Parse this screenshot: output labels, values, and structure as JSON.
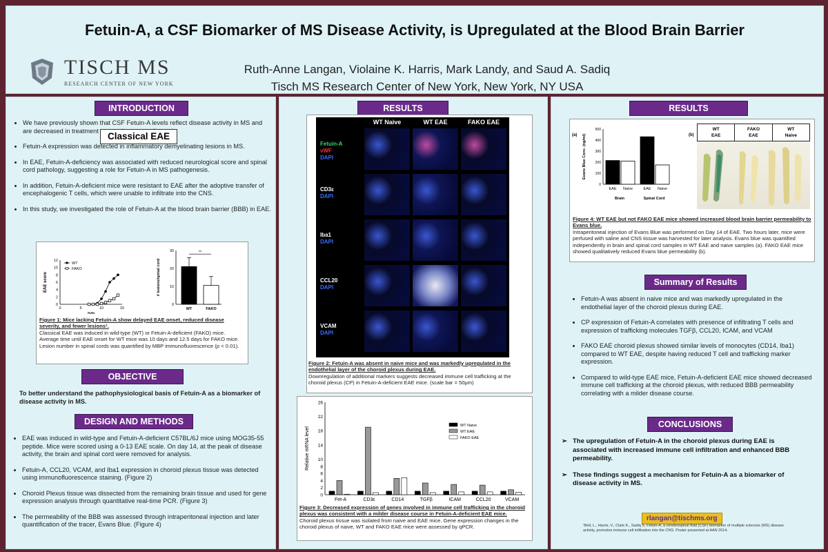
{
  "header": {
    "title": "Fetuin-A, a CSF Biomarker of MS Disease Activity, is Upregulated at the Blood Brain Barrier",
    "logo_main": "TISCH MS",
    "logo_sub": "RESEARCH CENTER OF NEW YORK",
    "authors": "Ruth-Anne Langan, Violaine K. Harris, Mark Landy, and Saud A. Sadiq",
    "affiliation": "Tisch MS Research Center of New York, New York, NY USA"
  },
  "left": {
    "intro_title": "INTRODUCTION",
    "intro_bullets": [
      "We have previously shown that CSF Fetuin-A levels reflect disease activity in MS and are decreased in treatment responders to natalizumab.",
      "Fetuin-A expression was detected in inflammatory demyelinating lesions in MS.",
      "In EAE, Fetuin-A-deficiency was associated with reduced neurological score and spinal cord pathology, suggesting a role for Fetuin-A in MS pathogenesis.",
      "In addition, Fetuin-A-deficient mice were resistant to EAE after the adoptive transfer of encephalogenic T cells, which were unable to infiltrate into the CNS.",
      "In this study, we investigated the role of Fetuin-A at the blood brain barrier (BBB) in EAE."
    ],
    "classical_eae": "Classical EAE",
    "fig1_caption_title": "Figure 1: Mice lacking Fetuin-A show delayed EAE onset, reduced disease severity, and fewer lesions¹.",
    "fig1_caption_text": "Classical EAE was induced in wild-type (WT) or Fetuin-A-deficient (FAKO) mice. Average time until EAE onset for WT mice was 10 days and 12.5 days for FAKO mice. Lesion number in spinal cords was quantified by MBP immunofluorescence (p < 0.01).",
    "objective_title": "OBJECTIVE",
    "objective_text": "To better understand the pathophysiological basis of Fetuin-A as a biomarker of disease activity in MS.",
    "design_title": "DESIGN AND METHODS",
    "design_bullets": [
      "EAE was induced in wild-type and Fetuin-A-deficient C57BL/6J mice using MOG35-55 peptide. Mice were scored using a 0-13 EAE scale. On day 14, at the peak of disease activity, the brain and spinal cord were removed for analysis.",
      "Fetuin-A, CCL20, VCAM, and Iba1 expression in choroid plexus tissue was detected using immunofluorescence staining. (Figure 2)",
      "Choroid Plexus tissue was dissected from the remaining brain tissue and used for gene expression analysis through quantitative real-time PCR. (Figure 3)",
      "The permeability of the BBB was assessed through intraperitoneal injection and later quantification of the tracer, Evans Blue. (Figure 4)"
    ]
  },
  "middle": {
    "results_title": "RESULTS",
    "micro_headers": [
      "WT Naive",
      "WT EAE",
      "FAKO EAE"
    ],
    "micro_rows": [
      {
        "l1": "Fetuin-A",
        "l2": "vWF",
        "l3": "DAPI"
      },
      {
        "l1": "CD3ε",
        "l2": "DAPI",
        "l3": ""
      },
      {
        "l1": "Iba1",
        "l2": "DAPI",
        "l3": ""
      },
      {
        "l1": "CCL20",
        "l2": "DAPI",
        "l3": ""
      },
      {
        "l1": "VCAM",
        "l2": "DAPI",
        "l3": ""
      }
    ],
    "fig2_caption_title": "Figure 2: Fetuin-A was absent in naive mice and was markedly upregulated in the endothelial layer of the choroid plexus during EAE.",
    "fig2_caption_text": "Downregulation of additional markers suggests decreased immune cell trafficking at the choroid plexus (CP) in Fetuin-A-deficient EAE mice. (scale bar = 50μm)",
    "fig3_caption_title": "Figure 3: Decreased expression of genes involved in immune cell trafficking in the choroid plexus was consistent with a milder disease course in Fetuin-A-deficient EAE mice.",
    "fig3_caption_text": "Choroid plexus tissue was isolated from naive and EAE mice. Gene expression changes in the choroid plexus of naive, WT and FAKO EAE mice were assessed by qPCR."
  },
  "right": {
    "results_title": "RESULTS",
    "fig4_panel_a": "(a)",
    "fig4_panel_b": "(b)",
    "fig4_photo_headers": [
      {
        "l1": "WT",
        "l2": "EAE"
      },
      {
        "l1": "FAKO",
        "l2": "EAE"
      },
      {
        "l1": "WT",
        "l2": "Naive"
      }
    ],
    "fig4_caption_title": "Figure 4: WT EAE but not FAKO EAE mice showed increased blood brain barrier permeability to Evans blue.",
    "fig4_caption_text": "Intraperitoneal injection of Evans Blue was performed on Day 14 of EAE. Two hours later, mice were perfused with saline and CNS tissue was harvested for later analysis. Evans blue was quantified independently in brain and spinal cord samples in WT EAE and naive samples (a). FAKO EAE mice showed qualitatively reduced Evans blue permeability (b).",
    "summary_title": "Summary of Results",
    "summary_bullets": [
      "Fetuin-A was absent in naive mice and was markedly upregulated in the endothelial layer of the choroid plexus during EAE.",
      "CP expression of Fetuin-A correlates with presence of infiltrating T cells and expression of trafficking molecules TGFβ, CCL20, ICAM, and VCAM",
      "FAKO EAE choroid plexus showed similar levels of monocytes (CD14, Iba1) compared to WT EAE, despite having reduced T cell and trafficking marker expression.",
      "Compared to wild-type EAE mice, Fetuin-A-deficient EAE mice showed decreased immune cell trafficking at the choroid plexus, with reduced BBB permeability correlating with a milder disease course."
    ],
    "conclusions_title": "CONCLUSIONS",
    "conclusions": [
      "The upregulation of Fetuin-A in the choroid plexus during EAE is associated with increased immune cell infiltration and enhanced BBB permeability.",
      "These findings suggest a mechanism for Fetuin-A as a biomarker of disease activity in MS."
    ],
    "email": "rlangan@tischms.org",
    "footnote": "¹Bell, L., Harris, V., Clark K., Sadiq S. Fetuin-A, a cerebrospinal fluid (CSF) biomarker of multiple sclerosis (MS) disease activity, promotes immune cell infiltration into the CNS. Poster presented at AAN 2014."
  },
  "colors": {
    "background": "#5e2330",
    "panel": "#dff3f6",
    "section_title": "#6b2a8a",
    "email_bg": "#e8c020"
  },
  "chart_data": [
    {
      "type": "line",
      "xlabel": "DPI",
      "ylabel": "EAE score",
      "xlim": [
        0,
        15
      ],
      "ylim": [
        0,
        12
      ],
      "xticks": [
        0,
        5,
        10,
        15
      ],
      "yticks": [
        0,
        2,
        4,
        6,
        8,
        10,
        12
      ],
      "series": [
        {
          "name": "WT",
          "x": [
            7,
            8,
            9,
            10,
            11,
            12,
            13,
            14
          ],
          "y": [
            0,
            0,
            0.3,
            1.5,
            3.5,
            6,
            7,
            8
          ]
        },
        {
          "name": "FAKO",
          "x": [
            7,
            8,
            9,
            10,
            11,
            12,
            13,
            14
          ],
          "y": [
            0,
            0,
            0,
            0.2,
            0.5,
            1,
            1.5,
            2.5
          ]
        }
      ],
      "legend": "top-left"
    },
    {
      "type": "bar",
      "ylabel": "# lesions/spinal cord",
      "categories": [
        "WT",
        "FAKO"
      ],
      "values": [
        21,
        10.5
      ],
      "ylim": [
        0,
        30
      ],
      "yticks": [
        0,
        10,
        20,
        30
      ],
      "significance": "**"
    },
    {
      "type": "bar",
      "ylabel": "Relative mRNA level",
      "categories": [
        "Fet-A",
        "CD3ε",
        "CD14",
        "TGFβ",
        "ICAM",
        "CCL20",
        "VCAM"
      ],
      "ylim": [
        0,
        26
      ],
      "yticks": [
        0,
        2,
        4,
        6,
        8,
        10,
        14,
        18,
        22,
        26
      ],
      "series": [
        {
          "name": "WT Naive",
          "values": [
            1,
            1,
            1,
            1,
            1,
            1,
            1
          ]
        },
        {
          "name": "WT EAE",
          "values": [
            4,
            19,
            4.6,
            3.3,
            2.9,
            2.7,
            1.4
          ]
        },
        {
          "name": "FAKO EAE",
          "values": [
            0.15,
            0.6,
            4.8,
            0.6,
            0.8,
            0.8,
            0.7
          ]
        }
      ],
      "legend": "top-right"
    },
    {
      "type": "bar",
      "ylabel": "Evans Blue Conc. (ng/ml)",
      "ylim": [
        0,
        500
      ],
      "yticks": [
        0,
        100,
        200,
        300,
        400,
        500
      ],
      "groups": [
        "Brain",
        "Spinal Cord"
      ],
      "categories": [
        "EAE",
        "Naive",
        "EAE",
        "Naive"
      ],
      "values": [
        215,
        210,
        430,
        175
      ]
    }
  ]
}
